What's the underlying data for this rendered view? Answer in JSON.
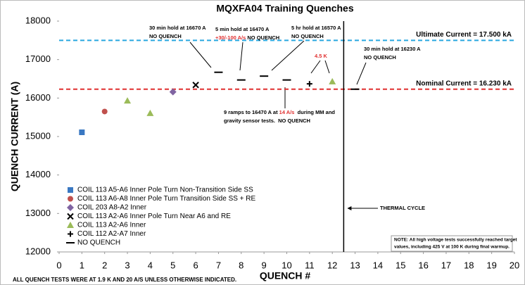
{
  "chart_data": {
    "type": "scatter",
    "title": "MQXFA04 Training Quenches",
    "x_label": "QUENCH #",
    "y_label": "QUENCH CURRENT (A)",
    "xlim": [
      0,
      20
    ],
    "xticks": [
      0,
      1,
      2,
      3,
      4,
      5,
      6,
      7,
      8,
      9,
      10,
      11,
      12,
      13,
      14,
      15,
      16,
      17,
      18,
      19,
      20
    ],
    "ylim": [
      12000,
      18000
    ],
    "yticks": [
      12000,
      13000,
      14000,
      15000,
      16000,
      17000,
      18000
    ],
    "series": [
      {
        "name": "COIL 113 A5-A6 Inner Pole Turn Non-Transition Side SS",
        "color": "#3a78c2",
        "marker": "square",
        "x": [
          1
        ],
        "values": [
          15110
        ]
      },
      {
        "name": "COIL 113 A6-A8 Inner Pole Turn Transition Side SS + RE",
        "color": "#c0504d",
        "marker": "circle",
        "x": [
          2
        ],
        "values": [
          15650
        ]
      },
      {
        "name": "COIL 203 A8-A2 Inner",
        "color": "#8064a2",
        "marker": "diamond",
        "x": [
          5
        ],
        "values": [
          16160
        ]
      },
      {
        "name": "COIL 113 A2-A6 Inner Pole Turn Near A6 and RE",
        "color": "#000000",
        "marker": "x",
        "x": [
          6
        ],
        "values": [
          16340
        ]
      },
      {
        "name": "COIL 113 A2-A6 Inner",
        "color": "#9bbb59",
        "marker": "triangle",
        "x": [
          3,
          4,
          12
        ],
        "values": [
          15930,
          15605,
          16430
        ]
      },
      {
        "name": "COIL 112 A2-A7 Inner",
        "color": "#000000",
        "marker": "plus",
        "x": [
          11
        ],
        "values": [
          16370
        ]
      },
      {
        "name": "NO QUENCH",
        "color": "#000000",
        "marker": "dash",
        "x": [
          7,
          8,
          9,
          10,
          13
        ],
        "values": [
          16670,
          16470,
          16570,
          16470,
          16230
        ]
      }
    ],
    "reference_lines": [
      {
        "value": 17500,
        "label": "Ultimate Current = 17.500 kA",
        "color": "#29a8e0"
      },
      {
        "value": 16230,
        "label": "Nominal Current = 16.230 kA",
        "color": "#e03030"
      }
    ],
    "vlines": [
      12.5
    ],
    "annotations": [
      [
        {
          "text": "30 min hold at 16670 A"
        }
      ],
      [
        {
          "text": "NO QUENCH"
        }
      ],
      [
        {
          "text": "5 min hold at 16470 A"
        }
      ],
      [
        {
          "text": "+30/-100 A/s",
          "color": "#e03030"
        },
        {
          "text": " NO QUENCH"
        }
      ],
      [
        {
          "text": "5 hr hold at 16570 A"
        }
      ],
      [
        {
          "text": "NO QUENCH"
        }
      ],
      [
        {
          "text": "4.5 K",
          "color": "#e03030"
        }
      ],
      [
        {
          "text": "30 min hold at 16230 A"
        }
      ],
      [
        {
          "text": "NO QUENCH"
        }
      ],
      [
        {
          "text": "9 ramps to 16470 A at "
        },
        {
          "text": "14 A/s",
          "color": "#e03030"
        },
        {
          "text": "  during MM and"
        }
      ],
      [
        {
          "text": "gravity sensor tests.  NO QUENCH"
        }
      ],
      [
        {
          "text": "THERMAL CYCLE"
        }
      ]
    ],
    "note": [
      "NOTE: All high voltage tests successfully reached target",
      "values, including 425 V at 100 K during final warmup."
    ],
    "footnote": "ALL QUENCH TESTS WERE AT 1.9 K AND 20 A/S UNLESS OTHERWISE INDICATED."
  }
}
